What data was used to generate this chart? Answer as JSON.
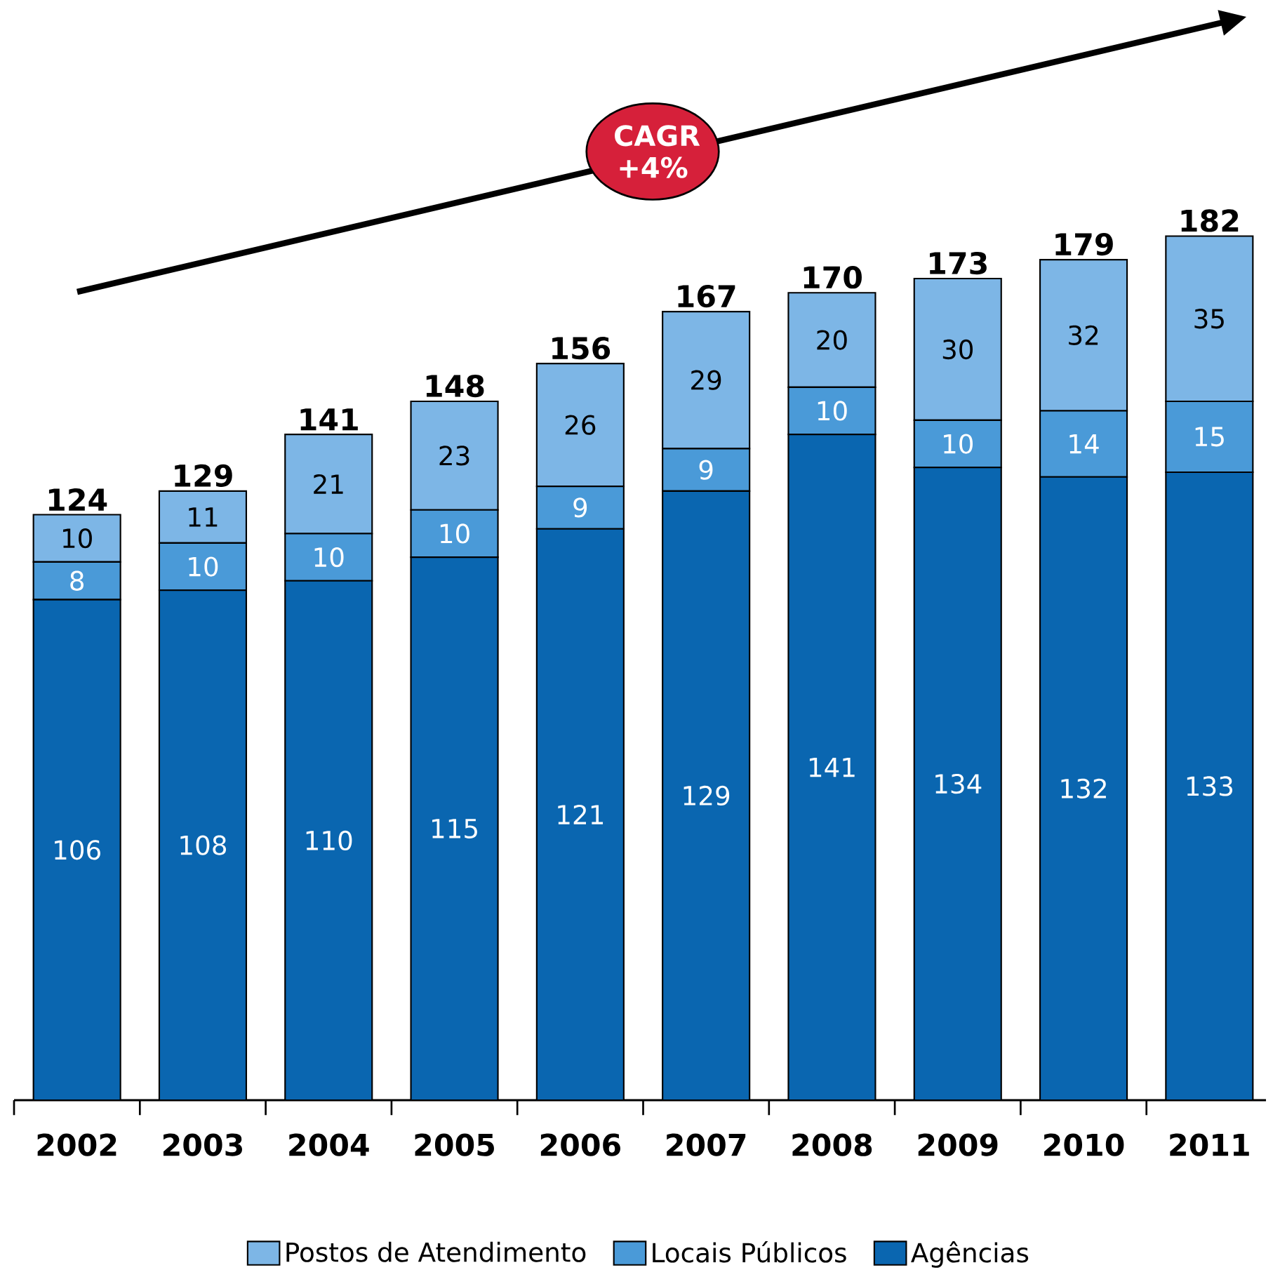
{
  "chart_data": {
    "type": "bar",
    "stacked": true,
    "data_labels": true,
    "legend": "bottom",
    "categories": [
      "2002",
      "2003",
      "2004",
      "2005",
      "2006",
      "2007",
      "2008",
      "2009",
      "2010",
      "2011"
    ],
    "series": [
      {
        "name": "Agências",
        "color": "#0a66b0",
        "values": [
          106,
          108,
          110,
          115,
          121,
          129,
          141,
          134,
          132,
          133
        ]
      },
      {
        "name": "Locais Públicos",
        "color": "#4a9ad8",
        "values": [
          8,
          10,
          10,
          10,
          9,
          9,
          10,
          10,
          14,
          15
        ]
      },
      {
        "name": "Postos de Atendimento",
        "color": "#7db6e6",
        "values": [
          10,
          11,
          21,
          23,
          26,
          29,
          20,
          30,
          32,
          35
        ]
      }
    ],
    "totals": [
      "124",
      "129",
      "141",
      "148",
      "156",
      "167",
      "170",
      "173",
      "179",
      "182"
    ],
    "annotations": [
      "CAGR +4%"
    ]
  }
}
